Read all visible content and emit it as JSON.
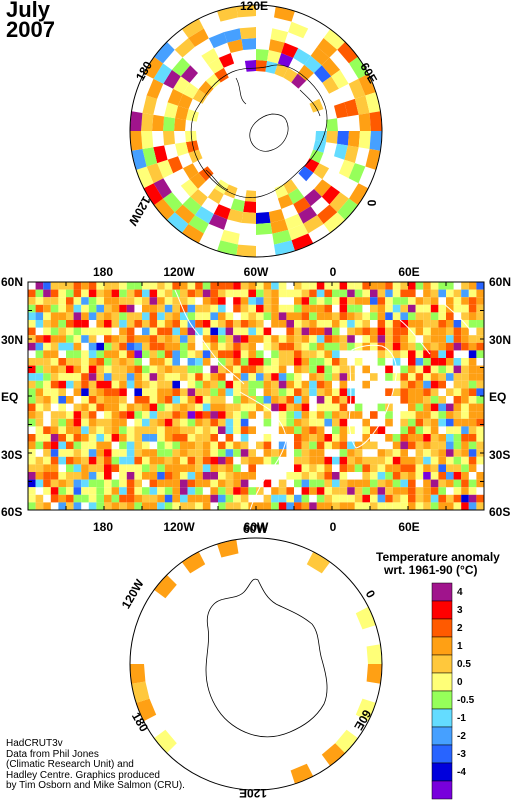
{
  "title": {
    "month": "July",
    "year": "2007"
  },
  "north_polar_map": {
    "lon_labels": {
      "top": "120E",
      "upper_right": "60E",
      "right": "0",
      "left_bottom": "120W",
      "upper_left": "180"
    }
  },
  "equatorial_map": {
    "top_lon_labels": [
      "180",
      "120W",
      "60W",
      "0",
      "60E"
    ],
    "bottom_lon_labels": [
      "180",
      "120W",
      "60W",
      "0",
      "60E"
    ],
    "left_lat_labels": [
      "60N",
      "30N",
      "EQ",
      "30S",
      "60S"
    ],
    "right_lat_labels": [
      "60N",
      "30N",
      "EQ",
      "30S",
      "60S"
    ]
  },
  "south_polar_map": {
    "lon_labels": {
      "top": "60W",
      "left": "120W",
      "right": "0",
      "lower_left": "180",
      "lower_right": "60E",
      "bottom": "120E"
    }
  },
  "legend": {
    "title_line1": "Temperature anomaly",
    "title_line2": "wrt. 1961-90  (°C)",
    "bins": [
      {
        "label": "4",
        "color": "#a0148c"
      },
      {
        "label": "3",
        "color": "#ff0000"
      },
      {
        "label": "2",
        "color": "#ff5a00"
      },
      {
        "label": "1",
        "color": "#ffa014"
      },
      {
        "label": "0.5",
        "color": "#ffc83c"
      },
      {
        "label": "0",
        "color": "#ffff78"
      },
      {
        "label": "-0.5",
        "color": "#96ff5a"
      },
      {
        "label": "-1",
        "color": "#64dcff"
      },
      {
        "label": "-2",
        "color": "#46a0ff"
      },
      {
        "label": "-3",
        "color": "#2864ff"
      },
      {
        "label": "-4",
        "color": "#0000dc"
      },
      {
        "label": "",
        "color": "#7800dc"
      }
    ]
  },
  "credit": {
    "line1": "HadCRUT3v",
    "line2": "Data from Phil Jones",
    "line3": "(Climatic Research Unit) and",
    "line4": "Hadley Centre.  Graphics produced",
    "line5": "by Tim Osborn and Mike Salmon (CRU)."
  }
}
